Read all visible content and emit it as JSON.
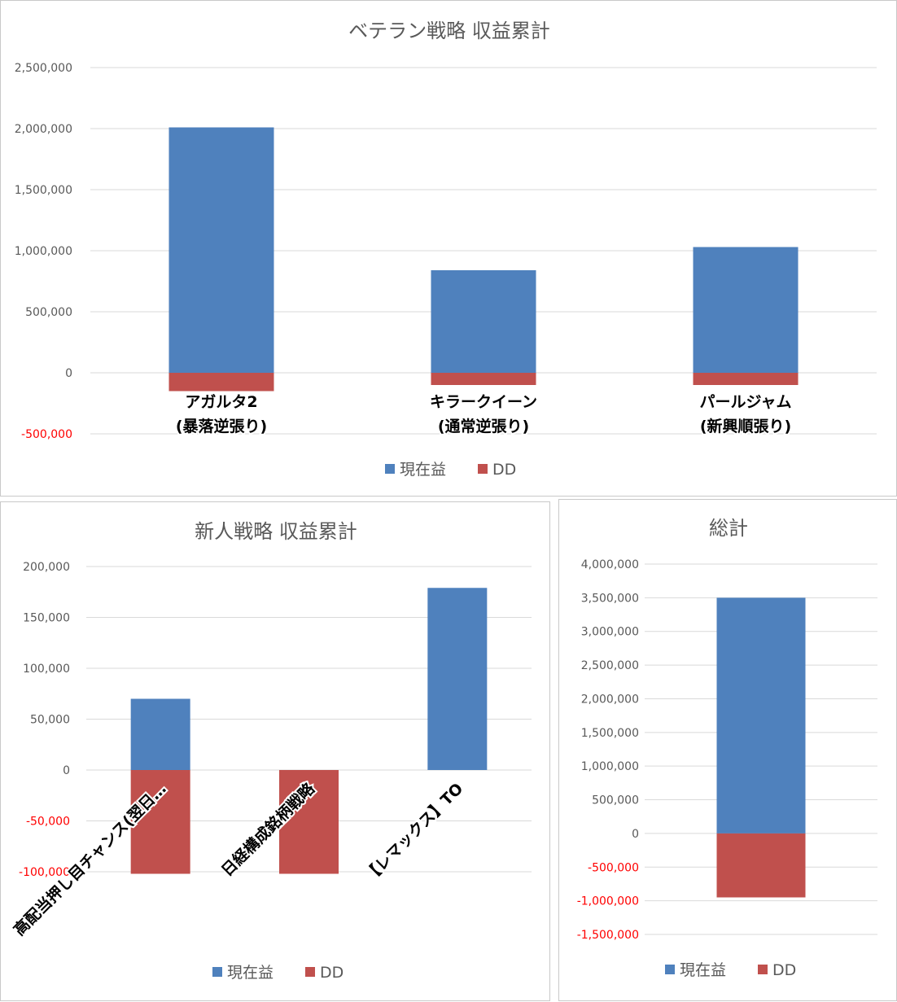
{
  "colors": {
    "current": "#4f81bd",
    "dd": "#c0504d",
    "grid": "#d9d9d9",
    "text": "#595959",
    "negative_tick": "#ff0000"
  },
  "legend": {
    "current": "現在益",
    "dd": "DD"
  },
  "chart_data": [
    {
      "type": "bar",
      "title": "ベテラン戦略 収益累計",
      "categories": [
        [
          "アガルタ2",
          "(暴落逆張り)"
        ],
        [
          "キラークイーン",
          "(通常逆張り)"
        ],
        [
          "パールジャム",
          "(新興順張り)"
        ]
      ],
      "series": [
        {
          "name": "現在益",
          "values": [
            2010000,
            840000,
            1030000
          ]
        },
        {
          "name": "DD",
          "values": [
            -150000,
            -100000,
            -100000
          ]
        }
      ],
      "ylim": [
        -500000,
        2500000
      ],
      "yticks": [
        "2,500,000",
        "2,000,000",
        "1,500,000",
        "1,000,000",
        "500,000",
        "0",
        "-500,000"
      ],
      "grid": true,
      "legend_position": "bottom"
    },
    {
      "type": "bar",
      "title": "新人戦略 収益累計",
      "categories": [
        [
          "高配当押し目チャンス(翌日…"
        ],
        [
          "日経構成銘柄戦略"
        ],
        [
          "【レマックス】TO"
        ]
      ],
      "series": [
        {
          "name": "現在益",
          "values": [
            70000,
            0,
            179000
          ]
        },
        {
          "name": "DD",
          "values": [
            -102000,
            -102000,
            0
          ]
        }
      ],
      "ylim": [
        -100000,
        200000
      ],
      "yticks": [
        "200,000",
        "150,000",
        "100,000",
        "50,000",
        "0",
        "-50,000",
        "-100,000"
      ],
      "grid": true,
      "legend_position": "bottom"
    },
    {
      "type": "bar",
      "title": "総計",
      "categories": [
        [
          ""
        ]
      ],
      "series": [
        {
          "name": "現在益",
          "values": [
            3500000
          ]
        },
        {
          "name": "DD",
          "values": [
            -950000
          ]
        }
      ],
      "ylim": [
        -1500000,
        4000000
      ],
      "yticks": [
        "4,000,000",
        "3,500,000",
        "3,000,000",
        "2,500,000",
        "2,000,000",
        "1,500,000",
        "1,000,000",
        "500,000",
        "0",
        "-500,000",
        "-1,000,000",
        "-1,500,000"
      ],
      "grid": true,
      "legend_position": "bottom"
    }
  ]
}
